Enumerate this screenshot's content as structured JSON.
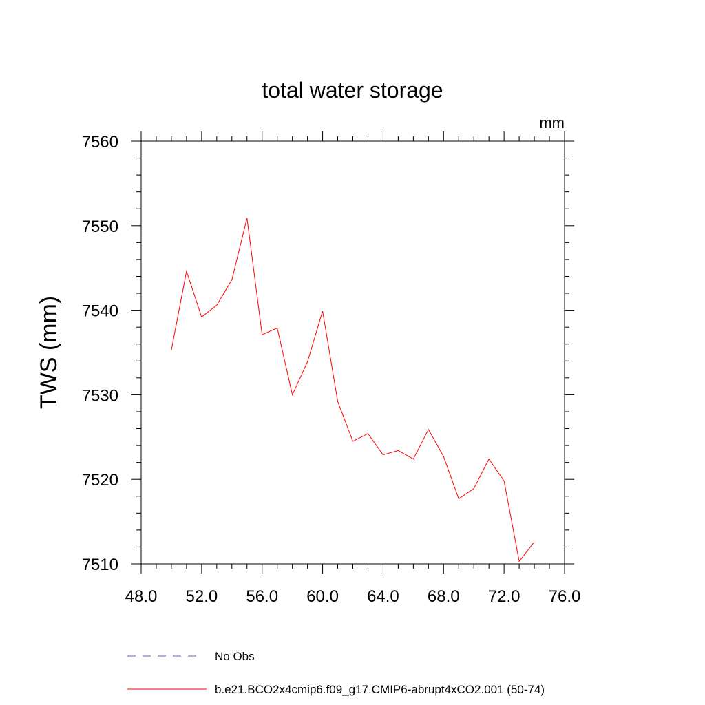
{
  "chart_data": {
    "type": "line",
    "title": "total water storage",
    "units_label": "mm",
    "xlabel": "",
    "ylabel": "TWS  (mm)",
    "xlim": [
      48.0,
      76.0
    ],
    "ylim": [
      7510,
      7560
    ],
    "x_ticks": [
      48.0,
      52.0,
      56.0,
      60.0,
      64.0,
      68.0,
      72.0,
      76.0
    ],
    "x_tick_labels": [
      "48.0",
      "52.0",
      "56.0",
      "60.0",
      "64.0",
      "68.0",
      "72.0",
      "76.0"
    ],
    "y_ticks": [
      7510,
      7520,
      7530,
      7540,
      7550,
      7560
    ],
    "y_tick_labels": [
      "7510",
      "7520",
      "7530",
      "7540",
      "7550",
      "7560"
    ],
    "x_minor_step": 1,
    "y_minor_step": 2,
    "series": [
      {
        "name": "No Obs",
        "color": "#6a5acd",
        "style": "dashed",
        "x": [],
        "values": []
      },
      {
        "name": "b.e21.BCO2x4cmip6.f09_g17.CMIP6-abrupt4xCO2.001 (50-74)",
        "color": "#ff0000",
        "style": "solid",
        "x": [
          50,
          51,
          52,
          53,
          54,
          55,
          56,
          57,
          58,
          59,
          60,
          61,
          62,
          63,
          64,
          65,
          66,
          67,
          68,
          69,
          70,
          71,
          72,
          73,
          74
        ],
        "values": [
          7535.3,
          7544.6,
          7539.2,
          7540.6,
          7543.6,
          7550.9,
          7537.1,
          7537.9,
          7530.0,
          7533.9,
          7539.9,
          7529.2,
          7524.5,
          7525.4,
          7522.9,
          7523.4,
          7522.4,
          7525.9,
          7522.7,
          7517.7,
          7518.9,
          7522.4,
          7519.8,
          7510.3,
          7512.6
        ]
      }
    ],
    "legend_position": "bottom-left",
    "grid": false
  }
}
